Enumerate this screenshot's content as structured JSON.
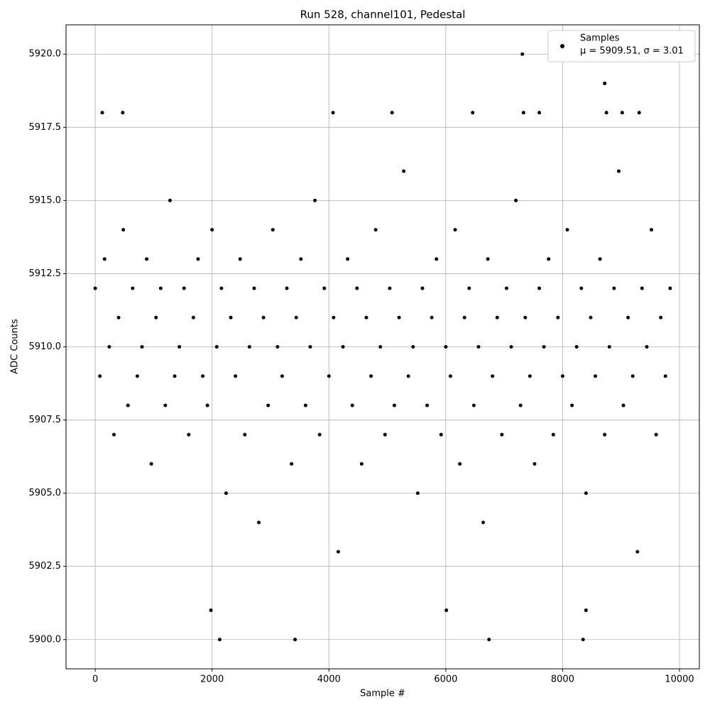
{
  "chart_data": {
    "type": "scatter",
    "title": "Run 528, channel101, Pedestal",
    "x_label": "Sample #",
    "y_label": "ADC Counts",
    "xlim": [
      -500,
      10340
    ],
    "ylim": [
      5899.0,
      5921.0
    ],
    "xticks": [
      0,
      2000,
      4000,
      6000,
      8000,
      10000
    ],
    "yticks": [
      {
        "value": 5900,
        "label": "5900.0"
      },
      {
        "value": 5902.5,
        "label": "5902.5"
      },
      {
        "value": 5905,
        "label": "5905.0"
      },
      {
        "value": 5907.5,
        "label": "5907.5"
      },
      {
        "value": 5910,
        "label": "5910.0"
      },
      {
        "value": 5912.5,
        "label": "5912.5"
      },
      {
        "value": 5915,
        "label": "5915.0"
      },
      {
        "value": 5917.5,
        "label": "5917.5"
      },
      {
        "value": 5920,
        "label": "5920.0"
      }
    ],
    "grid": true,
    "legend": "upper right",
    "stats_label": "μ = 5909.51, σ = 3.01",
    "series": [
      {
        "name": "Samples",
        "color": "#000000",
        "x": [
          0,
          80,
          160,
          240,
          320,
          400,
          480,
          560,
          640,
          720,
          800,
          880,
          960,
          1040,
          1120,
          1200,
          1280,
          1360,
          1440,
          1520,
          1600,
          1680,
          1760,
          1840,
          1920,
          2000,
          2080,
          2160,
          2240,
          2320,
          2400,
          2480,
          2560,
          2640,
          2720,
          2800,
          2880,
          2960,
          3040,
          3120,
          3200,
          3280,
          3360,
          3440,
          3520,
          3600,
          3680,
          3760,
          3840,
          3920,
          4000,
          4080,
          4160,
          4240,
          4320,
          4400,
          4480,
          4560,
          4640,
          4720,
          4800,
          4880,
          4960,
          5040,
          5120,
          5200,
          5280,
          5360,
          5440,
          5520,
          5600,
          5680,
          5760,
          5840,
          5920,
          6000,
          6080,
          6160,
          6240,
          6320,
          6400,
          6480,
          6560,
          6640,
          6720,
          6800,
          6880,
          6960,
          7040,
          7120,
          7200,
          7280,
          7360,
          7440,
          7520,
          7600,
          7680,
          7760,
          7840,
          7920,
          8000,
          8080,
          8160,
          8240,
          8320,
          8400,
          8480,
          8560,
          8640,
          8720,
          8800,
          8880,
          8960,
          9040,
          9120,
          9200,
          9280,
          9360,
          9440,
          9520,
          9600,
          9680,
          9760,
          9840,
          7310,
          8720,
          2130,
          3420,
          6740,
          8350,
          1980,
          6010,
          8400,
          120,
          470,
          4070,
          5080,
          6460,
          7330,
          7600,
          8750,
          9020,
          9310
        ],
        "values": [
          5912,
          5909,
          5913,
          5910,
          5907,
          5911,
          5914,
          5908,
          5912,
          5909,
          5910,
          5913,
          5906,
          5911,
          5912,
          5908,
          5915,
          5909,
          5910,
          5912,
          5907,
          5911,
          5913,
          5909,
          5908,
          5914,
          5910,
          5912,
          5905,
          5911,
          5909,
          5913,
          5907,
          5910,
          5912,
          5904,
          5911,
          5908,
          5914,
          5910,
          5909,
          5912,
          5906,
          5911,
          5913,
          5908,
          5910,
          5915,
          5907,
          5912,
          5909,
          5911,
          5903,
          5910,
          5913,
          5908,
          5912,
          5906,
          5911,
          5909,
          5914,
          5910,
          5907,
          5912,
          5908,
          5911,
          5916,
          5909,
          5910,
          5905,
          5912,
          5908,
          5911,
          5913,
          5907,
          5910,
          5909,
          5914,
          5906,
          5911,
          5912,
          5908,
          5910,
          5904,
          5913,
          5909,
          5911,
          5907,
          5912,
          5910,
          5915,
          5908,
          5911,
          5909,
          5906,
          5912,
          5910,
          5913,
          5907,
          5911,
          5909,
          5914,
          5908,
          5910,
          5912,
          5905,
          5911,
          5909,
          5913,
          5907,
          5910,
          5912,
          5916,
          5908,
          5911,
          5909,
          5903,
          5912,
          5910,
          5914,
          5907,
          5911,
          5909,
          5912,
          5920,
          5919,
          5900,
          5900,
          5900,
          5900,
          5901,
          5901,
          5901,
          5918,
          5918,
          5918,
          5918,
          5918,
          5918,
          5918,
          5918,
          5918,
          5918
        ]
      }
    ]
  }
}
